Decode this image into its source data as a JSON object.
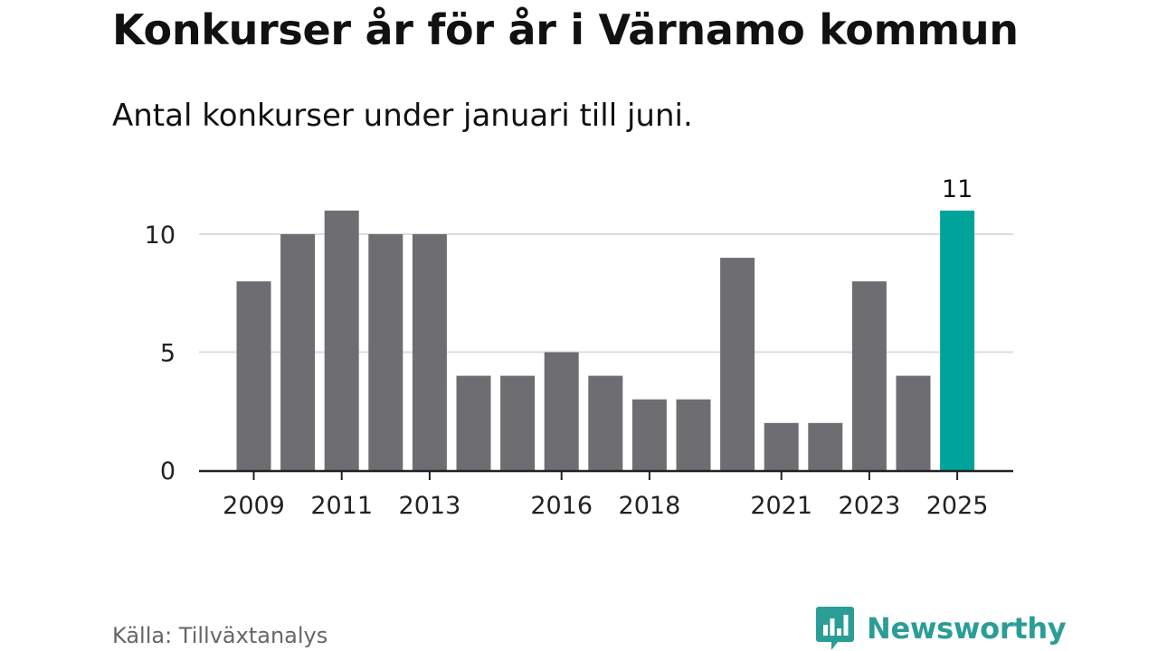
{
  "title": "Konkurser år för år i Värnamo kommun",
  "subtitle": "Antal konkurser under januari till juni.",
  "source": "Källa: Tillväxtanalys",
  "brand": {
    "name": "Newsworthy",
    "color": "#2a9d97",
    "icon": "newsworthy-logo-icon"
  },
  "colors": {
    "bar": "#6e6d72",
    "highlight": "#00a39a",
    "grid": "#dddddd",
    "axis": "#222222"
  },
  "chart_data": {
    "type": "bar",
    "title": "Konkurser år för år i Värnamo kommun",
    "subtitle": "Antal konkurser under januari till juni.",
    "xlabel": "",
    "ylabel": "",
    "categories": [
      "2009",
      "2010",
      "2011",
      "2012",
      "2013",
      "2014",
      "2015",
      "2016",
      "2017",
      "2018",
      "2019",
      "2020",
      "2021",
      "2022",
      "2023",
      "2024",
      "2025"
    ],
    "values": [
      8,
      10,
      11,
      10,
      10,
      4,
      4,
      5,
      4,
      3,
      3,
      9,
      2,
      2,
      8,
      4,
      11
    ],
    "x_tick_labels": [
      "2009",
      "2011",
      "2013",
      "2016",
      "2018",
      "2021",
      "2023",
      "2025"
    ],
    "y_ticks": [
      0,
      5,
      10
    ],
    "y_tick_labels": [
      "0",
      "5",
      "10"
    ],
    "ylim": [
      0,
      11.5
    ],
    "grid": true,
    "highlight": {
      "category": "2025",
      "label": "11"
    },
    "legend": "none"
  }
}
